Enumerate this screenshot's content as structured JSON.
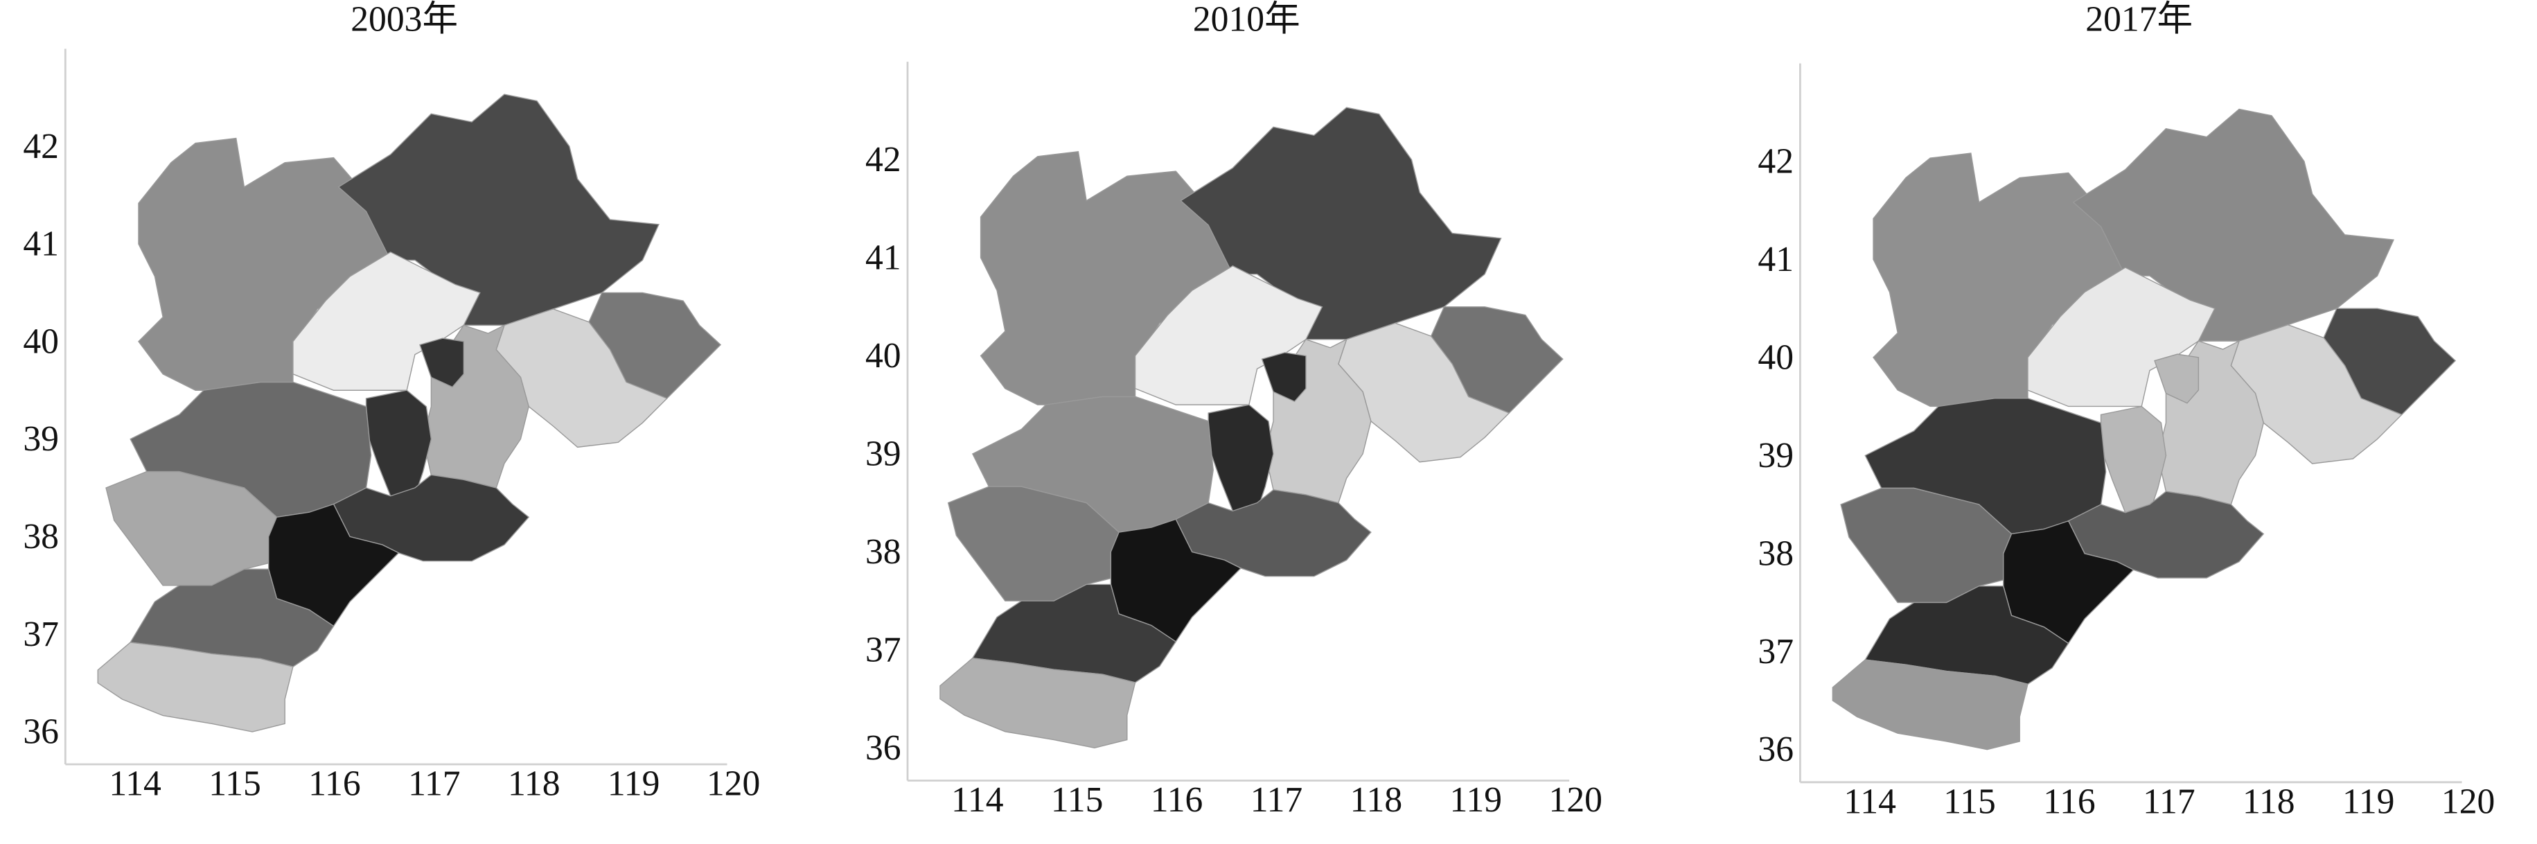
{
  "maps": [
    {
      "title": "2003年",
      "xlim": [
        113.3,
        120.1
      ],
      "ylim": [
        35.7,
        42.9
      ],
      "xticks": [
        114,
        115,
        116,
        117,
        118,
        119,
        120
      ],
      "yticks": [
        36,
        37,
        38,
        39,
        40,
        41,
        42
      ],
      "fills": [
        "#8e8e8e",
        "#4a4a4a",
        "#787878",
        "#ececec",
        "#d4d4d4",
        "#b0b0b0",
        "#333333",
        "#6a6a6a",
        "#3a3a3a",
        "#a8a8a8",
        "#151515",
        "#686868",
        "#c8c8c8"
      ]
    },
    {
      "title": "2010年",
      "xlim": [
        113.3,
        120.1
      ],
      "ylim": [
        35.7,
        42.9
      ],
      "xticks": [
        114,
        115,
        116,
        117,
        118,
        119,
        120
      ],
      "yticks": [
        36,
        37,
        38,
        39,
        40,
        41,
        42
      ],
      "fills": [
        "#8e8e8e",
        "#474747",
        "#737373",
        "#ececec",
        "#d8d8d8",
        "#cbcbcb",
        "#2a2a2a",
        "#8e8e8e",
        "#5a5a5a",
        "#7c7c7c",
        "#141414",
        "#3c3c3c",
        "#b0b0b0"
      ]
    },
    {
      "title": "2017年",
      "xlim": [
        113.3,
        120.1
      ],
      "ylim": [
        35.7,
        42.9
      ],
      "xticks": [
        114,
        115,
        116,
        117,
        118,
        119,
        120
      ],
      "yticks": [
        36,
        37,
        38,
        39,
        40,
        41,
        42
      ],
      "fills": [
        "#909090",
        "#8a8a8a",
        "#4a4a4a",
        "#e8e8e8",
        "#d4d4d4",
        "#c8c8c8",
        "#b8b8b8",
        "#383838",
        "#5c5c5c",
        "#6e6e6e",
        "#141414",
        "#2e2e2e",
        "#9a9a9a"
      ]
    }
  ]
}
